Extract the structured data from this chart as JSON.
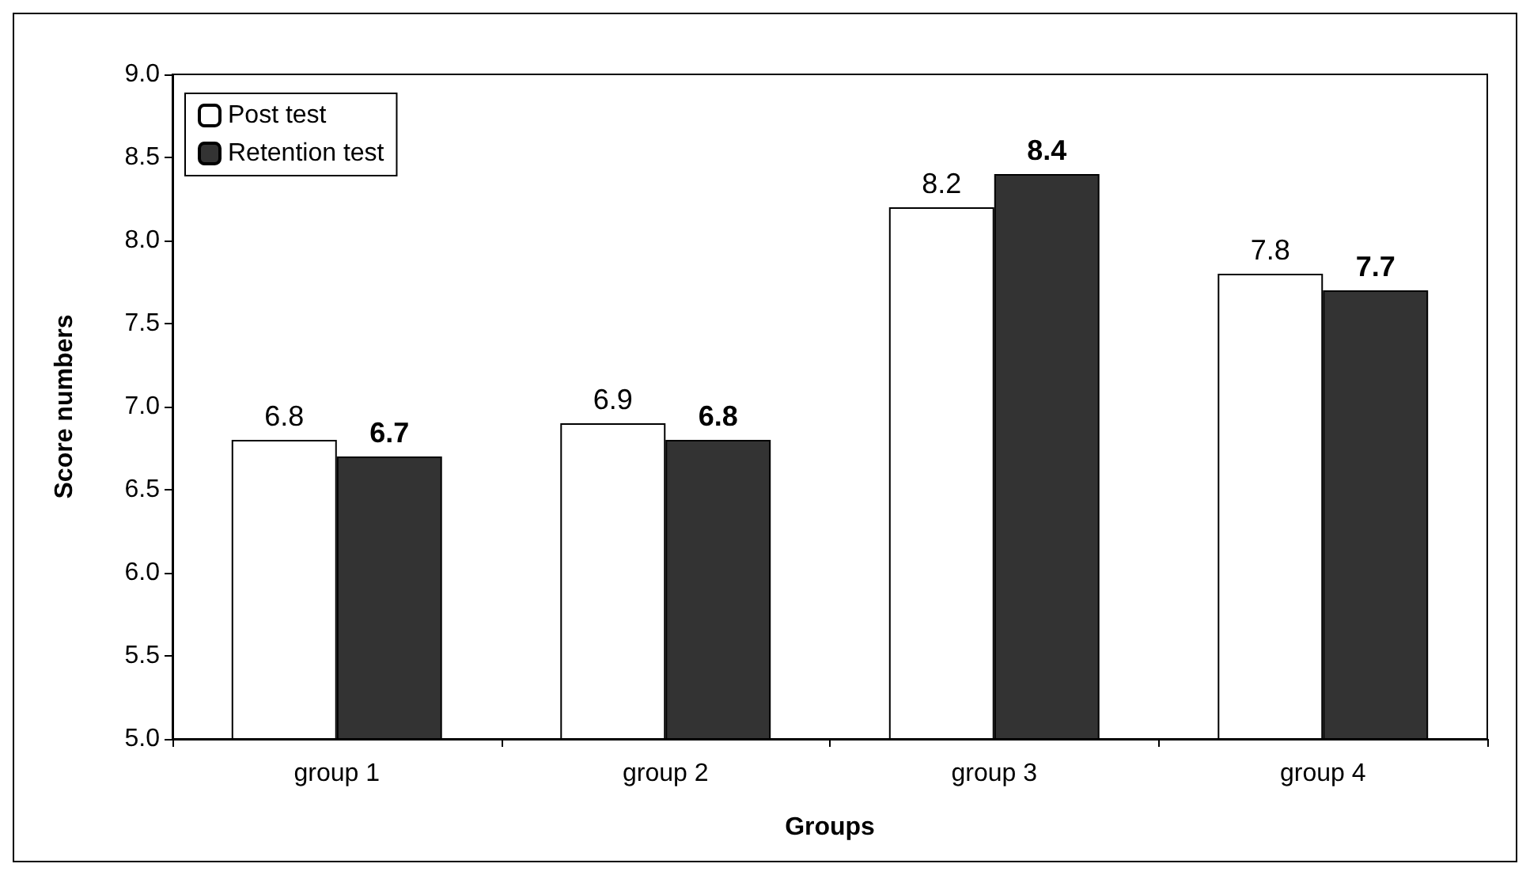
{
  "chart_data": {
    "type": "bar",
    "xlabel": "Groups",
    "ylabel": "Score numbers",
    "categories": [
      "group 1",
      "group 2",
      "group 3",
      "group 4"
    ],
    "series": [
      {
        "name": "Post test",
        "color": "#ffffff",
        "values": [
          6.8,
          6.9,
          8.2,
          7.8
        ]
      },
      {
        "name": "Retention test",
        "color": "#333333",
        "values": [
          6.7,
          6.8,
          8.4,
          7.7
        ]
      }
    ],
    "ylim": [
      5,
      9
    ],
    "yticks": [
      {
        "value": 5,
        "label": "5.0"
      },
      {
        "value": 5.5,
        "label": "5.5"
      },
      {
        "value": 6,
        "label": "6.0"
      },
      {
        "value": 6.5,
        "label": "6.5"
      },
      {
        "value": 7,
        "label": "7.0"
      },
      {
        "value": 7.5,
        "label": "7.5"
      },
      {
        "value": 8,
        "label": "8.0"
      },
      {
        "value": 8.5,
        "label": "8.5"
      },
      {
        "value": 9,
        "label": "9.0"
      }
    ],
    "grid": false,
    "legend": "top left",
    "data_labels": true
  }
}
